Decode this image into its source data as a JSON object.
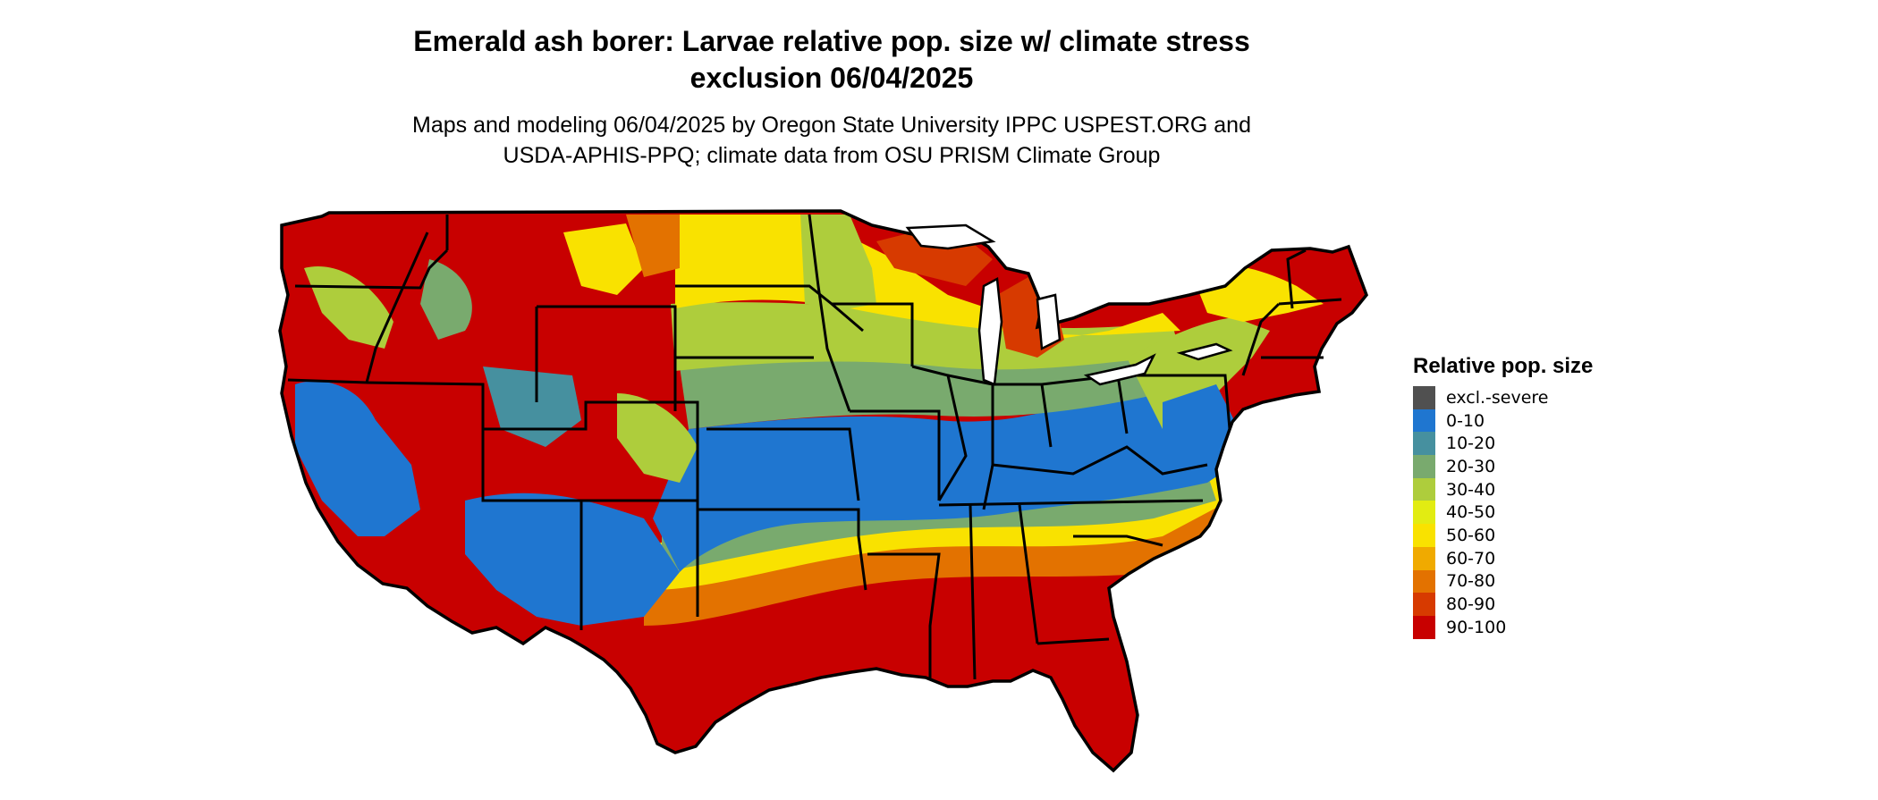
{
  "title": "Emerald ash borer: Larvae relative pop. size w/ climate stress\nexclusion 06/04/2025",
  "subtitle": "Maps and modeling 06/04/2025 by Oregon State University IPPC USPEST.ORG and\nUSDA-APHIS-PPQ; climate data from OSU PRISM Climate Group",
  "legend": {
    "title": "Relative pop. size",
    "items": [
      {
        "label": "excl.-severe",
        "color": "#505050"
      },
      {
        "label": "0-10",
        "color": "#1f76d0"
      },
      {
        "label": "10-20",
        "color": "#46909f"
      },
      {
        "label": "20-30",
        "color": "#79aa6e"
      },
      {
        "label": "30-40",
        "color": "#aecd3c"
      },
      {
        "label": "40-50",
        "color": "#e2ec12"
      },
      {
        "label": "50-60",
        "color": "#f9e200"
      },
      {
        "label": "60-70",
        "color": "#f0aa00"
      },
      {
        "label": "70-80",
        "color": "#e37200"
      },
      {
        "label": "80-90",
        "color": "#d73a00"
      },
      {
        "label": "90-100",
        "color": "#c80000"
      }
    ]
  },
  "colors": {
    "excl": "#505050",
    "c0": "#1f76d0",
    "c10": "#46909f",
    "c20": "#79aa6e",
    "c30": "#aecd3c",
    "c40": "#e2ec12",
    "c50": "#f9e200",
    "c60": "#f0aa00",
    "c70": "#e37200",
    "c80": "#d73a00",
    "c90": "#c80000"
  }
}
